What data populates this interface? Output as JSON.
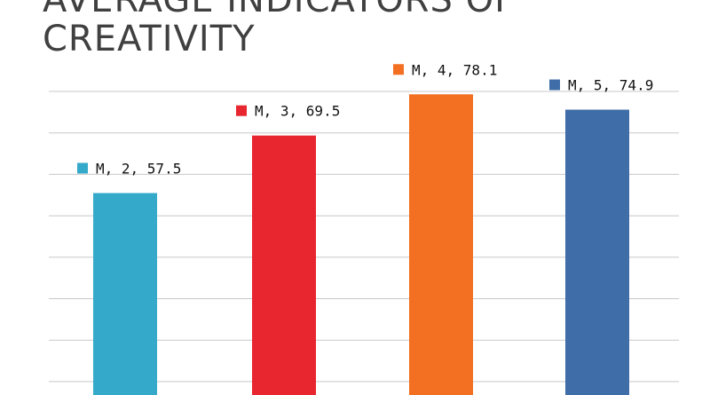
{
  "chart_data": {
    "type": "bar",
    "title": "Average indicators of\ncreativity",
    "xlabel": "",
    "ylabel": "",
    "ylim": [
      0,
      80
    ],
    "grid": true,
    "legend": "none",
    "categories": [
      "2",
      "3",
      "4",
      "5"
    ],
    "series_name": "M",
    "values": [
      57.5,
      69.5,
      78.1,
      74.9
    ],
    "data_labels": [
      "M, 2, 57.5",
      "M, 3, 69.5",
      "M, 4, 78.1",
      "M, 5, 74.9"
    ],
    "colors": [
      "#35a9c9",
      "#e8262f",
      "#f36f21",
      "#3f6da8"
    ]
  }
}
